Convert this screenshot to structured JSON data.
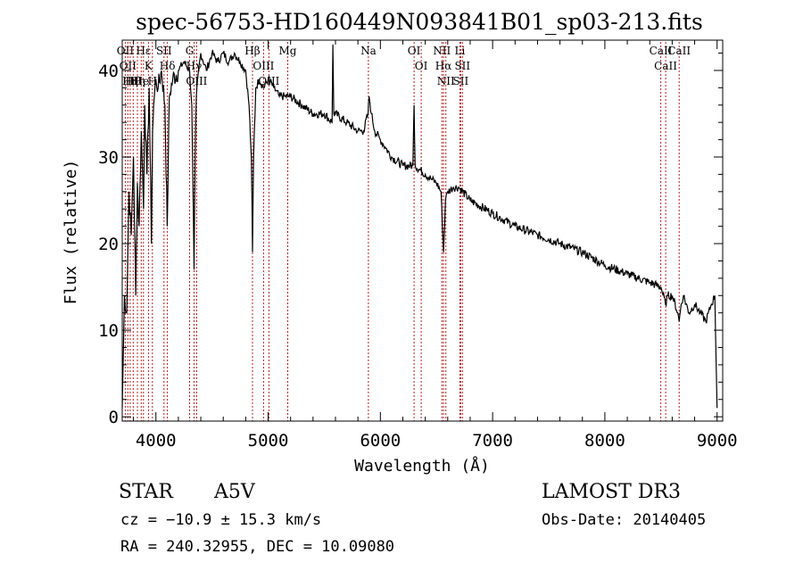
{
  "chart_data": {
    "type": "line",
    "title": "spec-56753-HD160449N093841B01_sp03-213.fits",
    "xlabel": "Wavelength (Å)",
    "ylabel": "Flux (relative)",
    "xlim": [
      3700,
      9050
    ],
    "ylim": [
      -0.5,
      43.5
    ],
    "xticks": [
      4000,
      5000,
      6000,
      7000,
      8000,
      9000
    ],
    "yticks": [
      0,
      10,
      20,
      30,
      40
    ],
    "grid": false,
    "series": [
      {
        "name": "flux",
        "x": [
          3700,
          3720,
          3740,
          3760,
          3780,
          3800,
          3820,
          3835,
          3850,
          3870,
          3890,
          3900,
          3920,
          3940,
          3960,
          3970,
          3980,
          4000,
          4020,
          4050,
          4080,
          4101,
          4120,
          4150,
          4200,
          4250,
          4300,
          4320,
          4340,
          4350,
          4360,
          4380,
          4400,
          4450,
          4500,
          4550,
          4600,
          4650,
          4700,
          4750,
          4800,
          4830,
          4850,
          4861,
          4870,
          4890,
          4920,
          4960,
          5000,
          5050,
          5100,
          5150,
          5200,
          5300,
          5400,
          5500,
          5570,
          5577,
          5585,
          5600,
          5700,
          5800,
          5850,
          5890,
          5900,
          5920,
          5950,
          6000,
          6050,
          6100,
          6200,
          6290,
          6300,
          6310,
          6400,
          6450,
          6500,
          6540,
          6563,
          6580,
          6600,
          6650,
          6700,
          6800,
          7000,
          7200,
          7400,
          7600,
          7800,
          8000,
          8200,
          8400,
          8500,
          8540,
          8560,
          8600,
          8650,
          8662,
          8680,
          8700,
          8750,
          8800,
          8850,
          8900,
          8950,
          8980,
          9000
        ],
        "y": [
          1,
          14,
          12,
          26,
          21,
          30,
          14,
          27,
          22,
          33,
          24,
          36,
          28,
          38,
          20,
          33,
          36,
          39,
          38,
          40,
          36,
          22,
          37,
          39,
          40,
          41,
          40,
          36,
          17,
          30,
          37,
          40,
          42,
          40,
          42,
          41,
          42,
          41,
          42,
          41,
          40,
          36,
          30,
          19,
          30,
          38,
          39,
          38,
          39,
          38,
          37,
          37,
          37,
          36,
          35,
          35,
          34,
          43,
          35,
          35,
          34,
          33,
          33,
          35,
          37,
          35,
          33,
          32,
          31,
          30,
          29,
          29,
          36,
          29,
          28,
          27.5,
          27,
          26,
          19,
          25,
          26,
          26.5,
          26.5,
          25,
          23.5,
          22,
          21,
          20,
          19,
          17.5,
          16.5,
          15.5,
          15,
          13,
          14,
          14,
          12,
          11,
          13,
          14,
          12,
          13,
          12,
          11,
          13,
          14,
          1
        ]
      }
    ],
    "lines": [
      {
        "x": 3727,
        "label": "OII"
      },
      {
        "x": 3750,
        "label": "OII"
      },
      {
        "x": 3771,
        "label": "Hη"
      },
      {
        "x": 3798,
        "label": "Hθ"
      },
      {
        "x": 3835,
        "label": "Hη"
      },
      {
        "x": 3869,
        "label": "He"
      },
      {
        "x": 3889,
        "label": "Hε"
      },
      {
        "x": 3934,
        "label": "K"
      },
      {
        "x": 3969,
        "label": "H"
      },
      {
        "x": 4072,
        "label": "SII"
      },
      {
        "x": 4102,
        "label": "Hδ"
      },
      {
        "x": 4300,
        "label": "G"
      },
      {
        "x": 4340,
        "label": "Hγ"
      },
      {
        "x": 4363,
        "label": "OIII"
      },
      {
        "x": 4861,
        "label": "Hβ"
      },
      {
        "x": 4959,
        "label": "OIII"
      },
      {
        "x": 5007,
        "label": "OIII"
      },
      {
        "x": 5175,
        "label": "Mg"
      },
      {
        "x": 5893,
        "label": "Na"
      },
      {
        "x": 6300,
        "label": "OI"
      },
      {
        "x": 6364,
        "label": "OI"
      },
      {
        "x": 6548,
        "label": "NII"
      },
      {
        "x": 6563,
        "label": "Hα"
      },
      {
        "x": 6583,
        "label": "NII"
      },
      {
        "x": 6708,
        "label": "Li"
      },
      {
        "x": 6716,
        "label": "SII"
      },
      {
        "x": 6731,
        "label": "SII"
      },
      {
        "x": 8498,
        "label": "CaII"
      },
      {
        "x": 8542,
        "label": "CaII"
      },
      {
        "x": 8662,
        "label": "CaII"
      }
    ]
  },
  "info": {
    "object_type": "STAR",
    "spectral_class": "A5V",
    "survey": "LAMOST DR3",
    "cz": "cz = −10.9 ± 15.3 km/s",
    "obs_date": "Obs-Date: 20140405",
    "coords": "RA = 240.32955, DEC =  10.09080"
  },
  "colors": {
    "axis": "#000000",
    "spectrum": "#000000",
    "line_marker": "#b22222"
  }
}
